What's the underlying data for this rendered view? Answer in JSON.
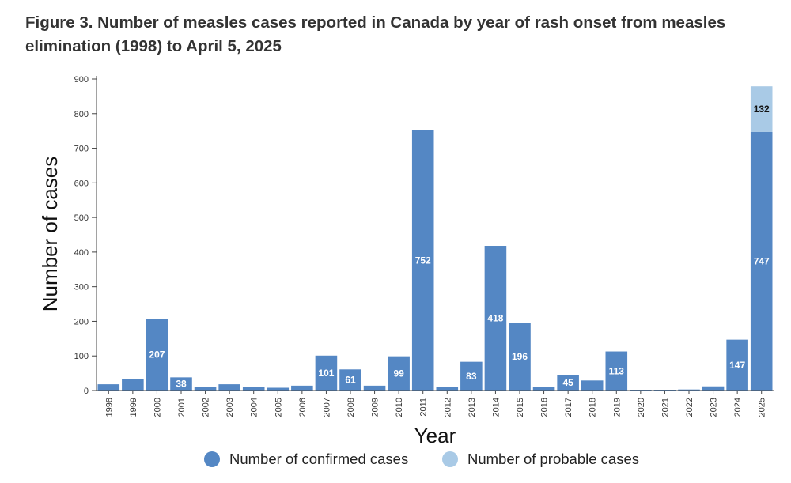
{
  "title": "Figure 3. Number of measles cases reported in Canada by year of rash onset from measles elimination (1998) to April 5, 2025",
  "chart_data": {
    "type": "bar",
    "stacked": true,
    "title": "Figure 3. Number of measles cases reported in Canada by year of rash onset from measles elimination (1998) to April 5, 2025",
    "xlabel": "Year",
    "ylabel": "Number of cases",
    "ylim": [
      0,
      900
    ],
    "yticks": [
      0,
      100,
      200,
      300,
      400,
      500,
      600,
      700,
      800,
      900
    ],
    "categories": [
      "1998",
      "1999",
      "2000",
      "2001",
      "2002",
      "2003",
      "2004",
      "2005",
      "2006",
      "2007",
      "2008",
      "2009",
      "2010",
      "2011",
      "2012",
      "2013",
      "2014",
      "2015",
      "2016",
      "2017",
      "2018",
      "2019",
      "2020",
      "2021",
      "2022",
      "2023",
      "2024",
      "2025"
    ],
    "series": [
      {
        "name": "Number of confirmed cases",
        "color": "#5487c4",
        "values": [
          18,
          33,
          207,
          38,
          10,
          18,
          10,
          8,
          14,
          101,
          61,
          14,
          99,
          752,
          10,
          83,
          418,
          196,
          11,
          45,
          29,
          113,
          1,
          1,
          3,
          12,
          147,
          747
        ],
        "labels": [
          "",
          "",
          "207",
          "38",
          "",
          "",
          "",
          "",
          "",
          "101",
          "61",
          "",
          "99",
          "752",
          "",
          "83",
          "418",
          "196",
          "",
          "45",
          "",
          "113",
          "",
          "",
          "",
          "",
          "147",
          "747"
        ]
      },
      {
        "name": "Number of probable cases",
        "color": "#a9cae6",
        "values": [
          0,
          0,
          0,
          0,
          0,
          0,
          0,
          0,
          0,
          0,
          0,
          0,
          0,
          0,
          0,
          0,
          0,
          0,
          0,
          0,
          0,
          0,
          0,
          0,
          0,
          0,
          0,
          132
        ],
        "labels": [
          "",
          "",
          "",
          "",
          "",
          "",
          "",
          "",
          "",
          "",
          "",
          "",
          "",
          "",
          "",
          "",
          "",
          "",
          "",
          "",
          "",
          "",
          "",
          "",
          "",
          "",
          "",
          "132"
        ]
      }
    ],
    "legend": "bottom"
  },
  "legend": {
    "confirmed_label": "Number of confirmed cases",
    "probable_label": "Number of probable cases",
    "confirmed_color": "#5487c4",
    "probable_color": "#a9cae6"
  }
}
